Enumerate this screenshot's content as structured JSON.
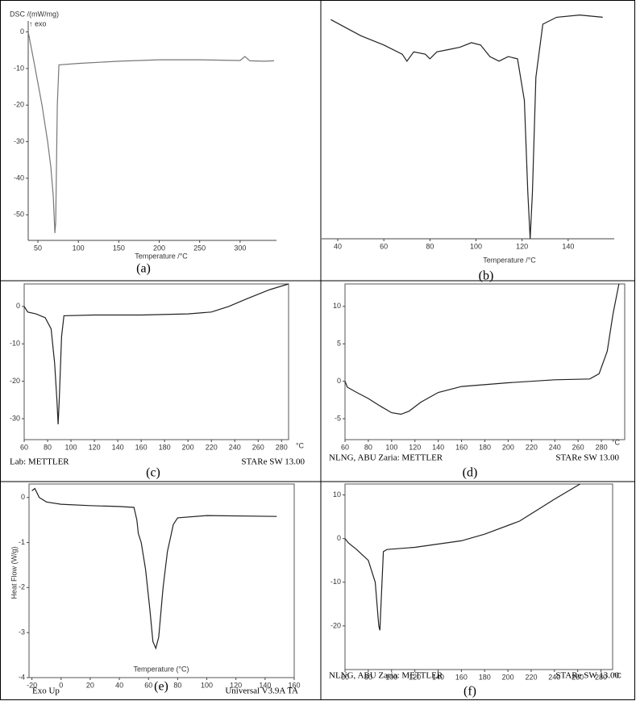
{
  "chart_data": [
    {
      "type": "line",
      "caption": "(a)",
      "ylabel": "DSC /(mW/mg)",
      "note": "↑ exo",
      "xlabel": "Temperature /°C",
      "color": "#777",
      "x": [
        38,
        45,
        55,
        62,
        66,
        69,
        71,
        72,
        74,
        76,
        100,
        150,
        200,
        250,
        300,
        306,
        312,
        330,
        342
      ],
      "values": [
        0,
        -8,
        -20,
        -30,
        -37,
        -45,
        -55,
        -52,
        -20,
        -9,
        -8.6,
        -8.0,
        -7.6,
        -7.6,
        -7.8,
        -6.7,
        -7.9,
        -8.0,
        -7.9
      ],
      "xlim": [
        38,
        345
      ],
      "ylim": [
        -57,
        3
      ],
      "xticks": [
        50,
        100,
        150,
        200,
        250,
        300
      ],
      "yticks": [
        0,
        -10,
        -20,
        -30,
        -40,
        -50
      ]
    },
    {
      "type": "line",
      "caption": "(b)",
      "xlabel": "Temperature /°C",
      "color": "#222",
      "x": [
        37,
        50,
        60,
        68,
        70,
        73,
        78,
        80,
        83,
        88,
        93,
        98,
        102,
        106,
        110,
        114,
        118,
        121,
        122.5,
        123.5,
        124.5,
        126,
        129,
        135,
        145,
        155
      ],
      "values": [
        95,
        88,
        84,
        80,
        77,
        81,
        80,
        78,
        81,
        82,
        83,
        85,
        84,
        79,
        77,
        79,
        78,
        60,
        20,
        0,
        20,
        70,
        93,
        96,
        97,
        96
      ],
      "xlim": [
        33,
        160
      ],
      "ylim": [
        0,
        100
      ],
      "xticks": [
        40,
        60,
        80,
        100,
        120,
        140
      ]
    },
    {
      "type": "line",
      "caption": "(c)",
      "x_unit": "°C",
      "footer_left": "Lab: METTLER",
      "footer_right": "STARe SW 13.00",
      "color": "#222",
      "x": [
        60,
        63,
        70,
        78,
        83,
        86,
        88,
        89,
        90,
        92,
        94,
        120,
        160,
        200,
        220,
        235,
        250,
        270,
        286
      ],
      "values": [
        0,
        -1.5,
        -2,
        -3,
        -6,
        -15,
        -25,
        -31.5,
        -25,
        -8,
        -2.5,
        -2.3,
        -2.3,
        -2,
        -1.5,
        0,
        2,
        4.5,
        6
      ],
      "xlim": [
        60,
        286
      ],
      "ylim": [
        -35.6,
        6
      ],
      "xticks": [
        60,
        80,
        100,
        120,
        140,
        160,
        180,
        200,
        220,
        240,
        260,
        280
      ],
      "yticks": [
        0,
        -10,
        -20,
        -30
      ]
    },
    {
      "type": "line",
      "caption": "(d)",
      "x_unit": "°C",
      "footer_left": "NLNG, ABU Zaria: METTLER",
      "footer_right": "STARe SW 13.00",
      "color": "#222",
      "x": [
        60,
        62,
        70,
        80,
        90,
        100,
        108,
        115,
        125,
        140,
        160,
        200,
        240,
        270,
        278,
        285,
        290,
        295
      ],
      "values": [
        0,
        -0.8,
        -1.5,
        -2.3,
        -3.3,
        -4.2,
        -4.4,
        -4,
        -2.8,
        -1.5,
        -0.7,
        -0.2,
        0.2,
        0.3,
        1,
        4,
        9,
        13
      ],
      "xlim": [
        60,
        300
      ],
      "ylim": [
        -7.8,
        13
      ],
      "xticks": [
        60,
        80,
        100,
        120,
        140,
        160,
        180,
        200,
        220,
        240,
        260,
        280
      ],
      "yticks": [
        10,
        5,
        0,
        -5
      ]
    },
    {
      "type": "line",
      "caption": "(e)",
      "ylabel": "Heat Flow (W/g)",
      "xlabel": "Temperature (°C)",
      "footer_left": "Exo Up",
      "footer_right": "Universal V3.9A TA",
      "color": "#222",
      "x": [
        -20,
        -18,
        -15,
        -10,
        0,
        20,
        40,
        50,
        52,
        53,
        55,
        58,
        61,
        63,
        65,
        67,
        70,
        73,
        77,
        80,
        100,
        148
      ],
      "values": [
        0.15,
        0.2,
        0,
        -0.1,
        -0.15,
        -0.18,
        -0.2,
        -0.22,
        -0.5,
        -0.8,
        -1,
        -1.6,
        -2.5,
        -3.2,
        -3.35,
        -3.1,
        -2,
        -1.2,
        -0.6,
        -0.45,
        -0.4,
        -0.42
      ],
      "xlim": [
        -22,
        160
      ],
      "ylim": [
        -4,
        0.3
      ],
      "xticks": [
        -20,
        0,
        20,
        40,
        60,
        80,
        100,
        120,
        140,
        160
      ],
      "yticks": [
        0,
        -1,
        -2,
        -3,
        -4
      ]
    },
    {
      "type": "line",
      "caption": "(f)",
      "x_unit": "°C",
      "footer_left": "NLNG, ABU Zaria: METTLER",
      "footer_right": "STARe SW 13.00",
      "color": "#222",
      "x": [
        60,
        63,
        70,
        80,
        86,
        89,
        90,
        91,
        93,
        96,
        120,
        160,
        180,
        210,
        240,
        262
      ],
      "values": [
        0,
        -1,
        -2.5,
        -5,
        -10,
        -20,
        -21,
        -15,
        -3,
        -2.5,
        -2,
        -0.5,
        1,
        4,
        9,
        12.5
      ],
      "xlim": [
        60,
        290
      ],
      "ylim": [
        -30,
        12.5
      ],
      "xticks": [
        60,
        80,
        100,
        120,
        140,
        160,
        180,
        200,
        220,
        240,
        260,
        280
      ],
      "yticks": [
        10,
        0,
        -10,
        -20
      ]
    }
  ]
}
